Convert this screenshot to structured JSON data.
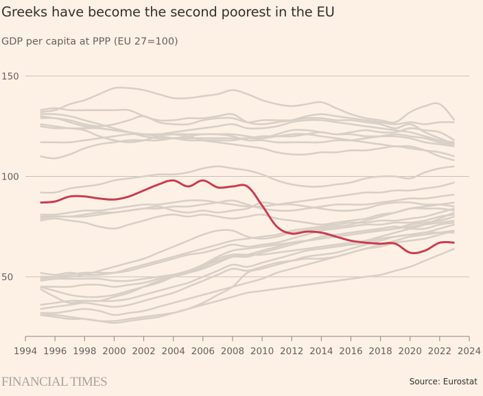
{
  "header": {
    "title": "Greeks have become the second poorest in the EU",
    "subtitle": "GDP per capita at PPP (EU 27=100)"
  },
  "footer": {
    "logo": "FINANCIAL TIMES",
    "source": "Source: Eurostat"
  },
  "colors": {
    "background": "#fdf1e6",
    "highlight": "#cc3a4c",
    "other": "#d8cfc6",
    "grid": "#c9bfb4"
  },
  "chart_data": {
    "type": "line",
    "title": "Greeks have become the second poorest in the EU",
    "subtitle": "GDP per capita at PPP (EU 27=100)",
    "xlabel": "",
    "ylabel": "",
    "xlim": [
      1994,
      2024
    ],
    "ylim": [
      25,
      150
    ],
    "x_ticks": [
      "1994",
      "1996",
      "1998",
      "2000",
      "2002",
      "2004",
      "2006",
      "2008",
      "2010",
      "2012",
      "2014",
      "2016",
      "2018",
      "2020",
      "2022",
      "2024"
    ],
    "y_ticks": [
      "50",
      "100",
      "150"
    ],
    "y_tick_values": [
      50,
      100,
      150
    ],
    "grid": true,
    "legend": "none",
    "x": [
      1995,
      1996,
      1997,
      1998,
      1999,
      2000,
      2001,
      2002,
      2003,
      2004,
      2005,
      2006,
      2007,
      2008,
      2009,
      2010,
      2011,
      2012,
      2013,
      2014,
      2015,
      2016,
      2017,
      2018,
      2019,
      2020,
      2021,
      2022,
      2023
    ],
    "highlight_series": {
      "name": "Greece",
      "values": [
        87,
        87.5,
        90,
        90,
        89,
        88.5,
        90,
        93,
        96,
        98,
        95,
        98,
        94.5,
        95,
        95,
        85.5,
        75,
        71.5,
        72.5,
        72,
        70,
        68,
        67,
        66.5,
        66.5,
        62,
        63,
        67,
        67
      ]
    },
    "series": [
      {
        "name": "other-1",
        "values": [
          132,
          133,
          136,
          138,
          141,
          144,
          144,
          143,
          141,
          139,
          139,
          140,
          141,
          143,
          141,
          138,
          136,
          135,
          136,
          137,
          134,
          131,
          129,
          128,
          127,
          132,
          135,
          136,
          128
        ]
      },
      {
        "name": "other-2",
        "values": [
          133,
          134,
          133,
          133,
          133,
          133,
          133,
          130,
          128,
          128,
          129,
          129,
          130,
          131,
          127,
          126,
          127,
          128,
          130,
          131,
          130,
          129,
          128,
          127,
          126,
          127,
          126,
          127,
          127
        ]
      },
      {
        "name": "other-3",
        "values": [
          131,
          131,
          130,
          128,
          126,
          124,
          122,
          120,
          119,
          119,
          120,
          121,
          121,
          121,
          120,
          119,
          120,
          120,
          121,
          122,
          121,
          122,
          123,
          122,
          122,
          124,
          123,
          122,
          118
        ]
      },
      {
        "name": "other-4",
        "values": [
          130,
          129,
          128,
          126,
          125,
          126,
          128,
          130,
          127,
          126,
          126,
          128,
          129,
          129,
          127,
          128,
          128,
          128,
          129,
          129,
          128,
          128,
          127,
          126,
          124,
          126,
          122,
          119,
          116
        ]
      },
      {
        "name": "other-5",
        "values": [
          129,
          129,
          127,
          125,
          124,
          123,
          122,
          121,
          121,
          122,
          123,
          124,
          125,
          126,
          124,
          124,
          125,
          127,
          128,
          128,
          127,
          126,
          125,
          124,
          123,
          122,
          120,
          118,
          117
        ]
      },
      {
        "name": "other-6",
        "values": [
          126,
          125,
          124,
          124,
          124,
          123,
          122,
          121,
          120,
          119,
          118,
          118,
          118,
          118,
          119,
          119,
          121,
          123,
          123,
          122,
          121,
          121,
          120,
          120,
          120,
          119,
          117,
          116,
          115
        ]
      },
      {
        "name": "other-7",
        "values": [
          125,
          124,
          124,
          123,
          120,
          118,
          117,
          118,
          120,
          121,
          121,
          121,
          121,
          120,
          118,
          118,
          117,
          117,
          117,
          117,
          118,
          118,
          119,
          120,
          121,
          120,
          119,
          117,
          116
        ]
      },
      {
        "name": "other-8",
        "values": [
          117,
          117,
          117,
          118,
          119,
          120,
          121,
          121,
          121,
          121,
          120,
          118,
          117,
          116,
          115,
          114,
          112,
          111,
          111,
          112,
          112,
          113,
          113,
          114,
          115,
          114,
          113,
          112,
          110
        ]
      },
      {
        "name": "other-9",
        "values": [
          110,
          109,
          111,
          114,
          116,
          117,
          118,
          118,
          118,
          119,
          119,
          119,
          119,
          119,
          119,
          120,
          120,
          121,
          121,
          120,
          119,
          118,
          117,
          116,
          115,
          115,
          113,
          110,
          108
        ]
      },
      {
        "name": "other-10",
        "values": [
          92,
          92,
          94,
          95,
          96,
          98,
          99,
          100,
          101,
          101,
          102,
          104,
          105,
          104,
          103,
          101,
          98,
          96,
          95,
          95,
          96,
          97,
          99,
          100,
          100,
          99,
          102,
          104,
          105
        ]
      },
      {
        "name": "other-11",
        "values": [
          81,
          81,
          82,
          83,
          83,
          84,
          85,
          86,
          86,
          87,
          88,
          88,
          87,
          86,
          85,
          85,
          86,
          87,
          88,
          89,
          90,
          91,
          92,
          92,
          93,
          93,
          94,
          95,
          97
        ]
      },
      {
        "name": "other-12",
        "values": [
          80,
          80,
          80,
          80,
          81,
          82,
          83,
          84,
          84,
          85,
          85,
          86,
          87,
          88,
          86,
          84,
          83,
          83,
          84,
          85,
          86,
          86,
          86,
          87,
          88,
          89,
          89,
          90,
          91
        ]
      },
      {
        "name": "other-13",
        "values": [
          79,
          80,
          80,
          81,
          82,
          82,
          83,
          84,
          85,
          83,
          82,
          83,
          82,
          83,
          84,
          87,
          86,
          86,
          85,
          84,
          83,
          83,
          84,
          86,
          87,
          87,
          86,
          86,
          85
        ]
      },
      {
        "name": "other-14",
        "values": [
          78,
          79,
          78,
          77,
          75,
          74,
          76,
          78,
          80,
          81,
          80,
          81,
          80,
          79,
          80,
          81,
          79,
          78,
          77,
          76,
          77,
          78,
          79,
          81,
          82,
          84,
          85,
          86,
          87
        ]
      },
      {
        "name": "other-15",
        "values": [
          50,
          50,
          50,
          51,
          53,
          55,
          57,
          59,
          62,
          65,
          68,
          71,
          73,
          73,
          70,
          69,
          70,
          72,
          73,
          74,
          75,
          76,
          78,
          80,
          82,
          84,
          84,
          84,
          83
        ]
      },
      {
        "name": "other-16",
        "values": [
          52,
          51,
          52,
          51,
          51,
          52,
          54,
          56,
          58,
          60,
          62,
          64,
          66,
          68,
          69,
          70,
          71,
          73,
          74,
          75,
          76,
          77,
          77,
          78,
          78,
          79,
          80,
          82,
          84
        ]
      },
      {
        "name": "other-17",
        "values": [
          49,
          50,
          51,
          52,
          52,
          52,
          53,
          55,
          57,
          59,
          61,
          62,
          64,
          66,
          65,
          66,
          67,
          69,
          71,
          73,
          74,
          75,
          76,
          76,
          77,
          77,
          78,
          80,
          81
        ]
      },
      {
        "name": "other-18",
        "values": [
          48,
          49,
          49,
          49,
          49,
          48,
          48,
          49,
          50,
          51,
          52,
          54,
          57,
          60,
          61,
          63,
          65,
          67,
          68,
          69,
          70,
          71,
          72,
          73,
          74,
          75,
          76,
          77,
          78
        ]
      },
      {
        "name": "other-19",
        "values": [
          45,
          45,
          45,
          46,
          46,
          45,
          46,
          47,
          49,
          51,
          53,
          56,
          60,
          63,
          64,
          65,
          66,
          67,
          68,
          69,
          70,
          71,
          72,
          73,
          74,
          76,
          77,
          78,
          80
        ]
      },
      {
        "name": "other-20",
        "values": [
          44,
          40,
          37,
          38,
          38,
          40,
          42,
          45,
          48,
          50,
          52,
          55,
          58,
          60,
          60,
          62,
          64,
          66,
          68,
          70,
          71,
          72,
          73,
          74,
          75,
          74,
          74,
          76,
          77
        ]
      },
      {
        "name": "other-21",
        "values": [
          36,
          37,
          38,
          38,
          38,
          38,
          39,
          41,
          43,
          45,
          47,
          50,
          53,
          56,
          55,
          57,
          59,
          61,
          63,
          64,
          65,
          66,
          67,
          69,
          70,
          71,
          72,
          74,
          76
        ]
      },
      {
        "name": "other-22",
        "values": [
          34,
          35,
          36,
          37,
          36,
          35,
          36,
          38,
          40,
          42,
          45,
          48,
          51,
          54,
          53,
          55,
          57,
          58,
          59,
          59,
          60,
          62,
          64,
          65,
          67,
          68,
          69,
          71,
          73
        ]
      },
      {
        "name": "other-23",
        "values": [
          32,
          32,
          33,
          34,
          33,
          31,
          32,
          33,
          35,
          37,
          39,
          41,
          43,
          45,
          47,
          49,
          52,
          54,
          56,
          58,
          60,
          62,
          64,
          66,
          68,
          70,
          71,
          72,
          73
        ]
      },
      {
        "name": "other-24",
        "values": [
          31,
          31,
          30,
          29,
          28,
          28,
          29,
          30,
          31,
          32,
          34,
          37,
          41,
          45,
          52,
          54,
          56,
          58,
          60,
          61,
          62,
          64,
          66,
          68,
          70,
          71,
          72,
          72,
          72
        ]
      },
      {
        "name": "other-25",
        "values": [
          31,
          30,
          29,
          29,
          28,
          27,
          28,
          29,
          30,
          32,
          34,
          36,
          38,
          40,
          42,
          43,
          44,
          45,
          46,
          47,
          48,
          49,
          50,
          51,
          53,
          55,
          58,
          61,
          64
        ]
      },
      {
        "name": "other-26",
        "values": [
          45,
          43,
          41,
          40,
          40,
          41,
          43,
          45,
          47,
          50,
          52,
          55,
          59,
          61,
          61,
          61,
          62,
          63,
          64,
          65,
          66,
          67,
          68,
          70,
          72,
          74,
          76,
          79,
          82
        ]
      }
    ]
  }
}
